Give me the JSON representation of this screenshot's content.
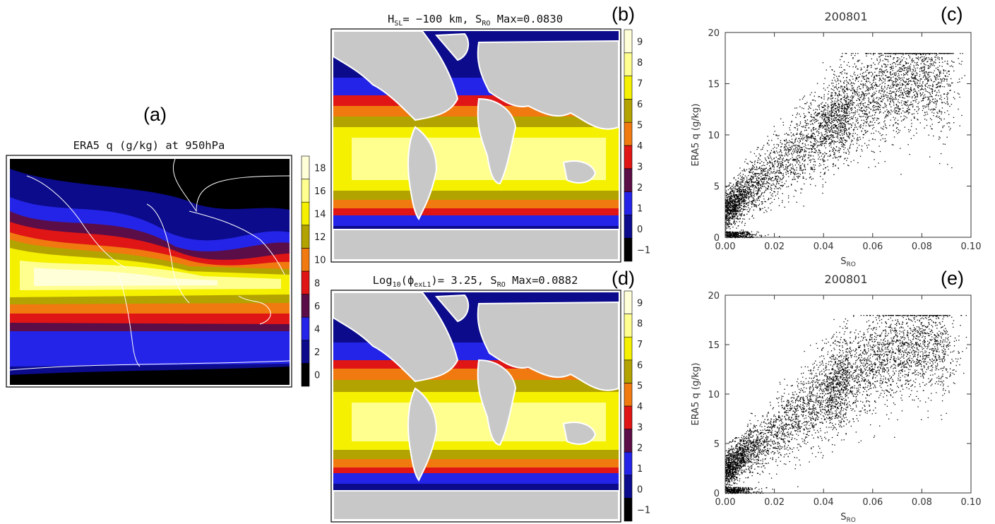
{
  "panel_letters": [
    "(a)",
    "(b)",
    "(c)",
    "(d)",
    "(e)"
  ],
  "map_a": {
    "title": "ERA5 q (g/kg) at  950hPa",
    "colorbar": {
      "ticks": [
        "0",
        "2",
        "4",
        "6",
        "8",
        "10",
        "12",
        "14",
        "16",
        "18"
      ],
      "colors": [
        "#000000",
        "#0b0b8c",
        "#2424e8",
        "#5a0d47",
        "#e01515",
        "#f07a10",
        "#b3a300",
        "#f4f000",
        "#ffff90",
        "#ffffd8"
      ]
    }
  },
  "map_b": {
    "title_prefix": "H",
    "title_sub": "SL",
    "title_mid": "= −100 km, S",
    "title_sub2": "RO",
    "title_suffix": " Max=0.0830",
    "colorbar": {
      "ticks": [
        "−1",
        "0",
        "1",
        "2",
        "3",
        "4",
        "5",
        "6",
        "7",
        "8",
        "9"
      ],
      "colors": [
        "#000000",
        "#0b0b8c",
        "#2424e8",
        "#5a0d47",
        "#e01515",
        "#f07a10",
        "#b3a300",
        "#f4f000",
        "#ffff90",
        "#ffffd8"
      ]
    }
  },
  "map_d": {
    "title_prefix": "Log",
    "title_sub": "10",
    "title_mid": "(ϕ",
    "title_sub2": "exL1",
    "title_mid2": ")= 3.25, S",
    "title_sub3": "RO",
    "title_suffix": " Max=0.0882",
    "colorbar": {
      "ticks": [
        "−1",
        "0",
        "1",
        "2",
        "3",
        "4",
        "5",
        "6",
        "7",
        "8",
        "9"
      ],
      "colors": [
        "#000000",
        "#0b0b8c",
        "#2424e8",
        "#5a0d47",
        "#e01515",
        "#f07a10",
        "#b3a300",
        "#f4f000",
        "#ffff90",
        "#ffffd8"
      ]
    }
  },
  "map_colors": {
    "land": "#c8c8c8",
    "coast": "#ffffff"
  },
  "chart_data": [
    {
      "type": "scatter",
      "panel": "(c)",
      "title": "200801",
      "xlabel": "S_RO",
      "ylabel": "ERA5 q (g/kg)",
      "xlim": [
        0.0,
        0.1
      ],
      "ylim": [
        0,
        20
      ],
      "xticks": [
        "0.00",
        "0.02",
        "0.04",
        "0.06",
        "0.08",
        "0.10"
      ],
      "yticks": [
        "0",
        "5",
        "10",
        "15",
        "20"
      ],
      "grid": false,
      "trend_points": [
        [
          0.0,
          2.5
        ],
        [
          0.01,
          4.8
        ],
        [
          0.02,
          6.5
        ],
        [
          0.03,
          8.8
        ],
        [
          0.04,
          10.5
        ],
        [
          0.05,
          12.5
        ],
        [
          0.06,
          13.8
        ],
        [
          0.07,
          14.8
        ],
        [
          0.08,
          15.5
        ],
        [
          0.09,
          15.0
        ]
      ]
    },
    {
      "type": "scatter",
      "panel": "(e)",
      "title": "200801",
      "xlabel": "S_RO",
      "ylabel": "ERA5 q (g/kg)",
      "xlim": [
        0.0,
        0.1
      ],
      "ylim": [
        0,
        20
      ],
      "xticks": [
        "0.00",
        "0.02",
        "0.04",
        "0.06",
        "0.08",
        "0.10"
      ],
      "yticks": [
        "0",
        "5",
        "10",
        "15",
        "20"
      ],
      "grid": false,
      "trend_points": [
        [
          0.0,
          2.3
        ],
        [
          0.01,
          4.5
        ],
        [
          0.02,
          6.0
        ],
        [
          0.03,
          8.0
        ],
        [
          0.04,
          9.8
        ],
        [
          0.05,
          11.8
        ],
        [
          0.06,
          13.2
        ],
        [
          0.07,
          14.3
        ],
        [
          0.08,
          15.0
        ],
        [
          0.09,
          14.8
        ]
      ]
    }
  ]
}
